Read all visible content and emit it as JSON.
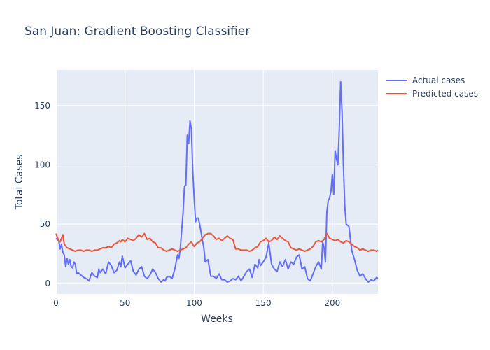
{
  "chart_data": {
    "type": "line",
    "title": "San Juan: Gradient Boosting Classifier",
    "xlabel": "Weeks",
    "ylabel": "Total Cases",
    "xlim": [
      0,
      233
    ],
    "ylim": [
      -9,
      180
    ],
    "xticks": [
      0,
      50,
      100,
      150,
      200
    ],
    "yticks": [
      0,
      50,
      100,
      150
    ],
    "grid": true,
    "legend_position": "top-right",
    "series": [
      {
        "name": "Actual cases",
        "color": "#636efa",
        "x": [
          0,
          2,
          3,
          4,
          5,
          6,
          7,
          8,
          9,
          10,
          11,
          12,
          13,
          14,
          15,
          16,
          18,
          20,
          22,
          24,
          25,
          26,
          28,
          30,
          31,
          32,
          34,
          36,
          38,
          40,
          42,
          43,
          44,
          46,
          47,
          48,
          50,
          52,
          54,
          56,
          58,
          60,
          62,
          64,
          66,
          68,
          70,
          72,
          74,
          76,
          78,
          79,
          80,
          82,
          84,
          86,
          88,
          89,
          90,
          91,
          92,
          93,
          94,
          95,
          96,
          97,
          98,
          99,
          100,
          101,
          102,
          103,
          104,
          106,
          107,
          108,
          110,
          112,
          114,
          116,
          118,
          120,
          122,
          124,
          126,
          128,
          130,
          132,
          134,
          136,
          138,
          140,
          142,
          144,
          146,
          147,
          148,
          150,
          152,
          154,
          156,
          158,
          160,
          162,
          164,
          166,
          168,
          170,
          172,
          174,
          176,
          178,
          180,
          182,
          184,
          186,
          188,
          190,
          192,
          193,
          194,
          195,
          196,
          197,
          198,
          199,
          200,
          201,
          202,
          203,
          204,
          205,
          206,
          207,
          208,
          209,
          210,
          212,
          214,
          216,
          218,
          220,
          222,
          224,
          226,
          228,
          230,
          232,
          233
        ],
        "values": [
          38,
          36,
          29,
          33,
          26,
          24,
          14,
          21,
          16,
          20,
          14,
          13,
          18,
          16,
          8,
          9,
          7,
          5,
          4,
          2,
          6,
          9,
          6,
          5,
          12,
          9,
          12,
          8,
          18,
          15,
          9,
          10,
          11,
          18,
          14,
          23,
          13,
          16,
          19,
          10,
          7,
          12,
          14,
          6,
          4,
          7,
          12,
          9,
          4,
          1,
          3,
          2,
          5,
          6,
          4,
          12,
          24,
          21,
          30,
          45,
          60,
          82,
          83,
          125,
          118,
          137,
          130,
          95,
          72,
          52,
          55,
          55,
          50,
          36,
          30,
          18,
          20,
          6,
          6,
          4,
          8,
          3,
          3,
          1,
          2,
          4,
          3,
          6,
          2,
          6,
          10,
          12,
          5,
          16,
          13,
          20,
          15,
          18,
          22,
          34,
          16,
          12,
          10,
          18,
          14,
          20,
          12,
          18,
          16,
          22,
          24,
          12,
          14,
          4,
          2,
          8,
          14,
          18,
          12,
          35,
          30,
          18,
          60,
          70,
          72,
          78,
          92,
          75,
          112,
          105,
          100,
          130,
          170,
          145,
          100,
          65,
          50,
          48,
          28,
          20,
          11,
          6,
          8,
          4,
          1,
          3,
          2,
          5,
          4
        ]
      },
      {
        "name": "Predicted cases",
        "color": "#ef553b",
        "x": [
          0,
          2,
          3,
          4,
          5,
          6,
          8,
          10,
          12,
          14,
          16,
          18,
          20,
          22,
          24,
          26,
          28,
          30,
          32,
          34,
          36,
          38,
          40,
          42,
          44,
          46,
          47,
          48,
          50,
          52,
          54,
          56,
          58,
          60,
          62,
          64,
          66,
          68,
          70,
          72,
          74,
          76,
          78,
          80,
          82,
          84,
          86,
          88,
          90,
          92,
          94,
          96,
          98,
          100,
          102,
          104,
          106,
          108,
          110,
          112,
          114,
          116,
          118,
          120,
          122,
          124,
          126,
          128,
          130,
          132,
          134,
          136,
          138,
          140,
          142,
          144,
          146,
          148,
          150,
          152,
          154,
          156,
          158,
          160,
          162,
          164,
          166,
          168,
          170,
          172,
          174,
          176,
          178,
          180,
          182,
          184,
          186,
          188,
          190,
          192,
          194,
          196,
          198,
          200,
          202,
          204,
          206,
          208,
          210,
          212,
          214,
          216,
          218,
          220,
          222,
          224,
          226,
          228,
          230,
          232,
          233
        ],
        "values": [
          42,
          36,
          35,
          38,
          41,
          33,
          30,
          29,
          28,
          27,
          28,
          28,
          27,
          28,
          28,
          27,
          28,
          28,
          29,
          30,
          30,
          31,
          30,
          33,
          34,
          36,
          35,
          37,
          35,
          38,
          37,
          36,
          38,
          41,
          39,
          42,
          37,
          38,
          35,
          34,
          30,
          30,
          28,
          27,
          28,
          29,
          28,
          27,
          28,
          29,
          30,
          33,
          35,
          31,
          34,
          35,
          38,
          41,
          42,
          42,
          40,
          37,
          38,
          36,
          38,
          40,
          38,
          37,
          29,
          29,
          28,
          28,
          28,
          27,
          28,
          30,
          31,
          35,
          36,
          38,
          35,
          36,
          39,
          37,
          40,
          38,
          36,
          35,
          30,
          29,
          28,
          29,
          28,
          27,
          28,
          29,
          31,
          35,
          36,
          35,
          37,
          42,
          38,
          37,
          36,
          37,
          35,
          34,
          36,
          35,
          33,
          31,
          30,
          28,
          29,
          28,
          27,
          28,
          28,
          27,
          28
        ]
      }
    ]
  }
}
